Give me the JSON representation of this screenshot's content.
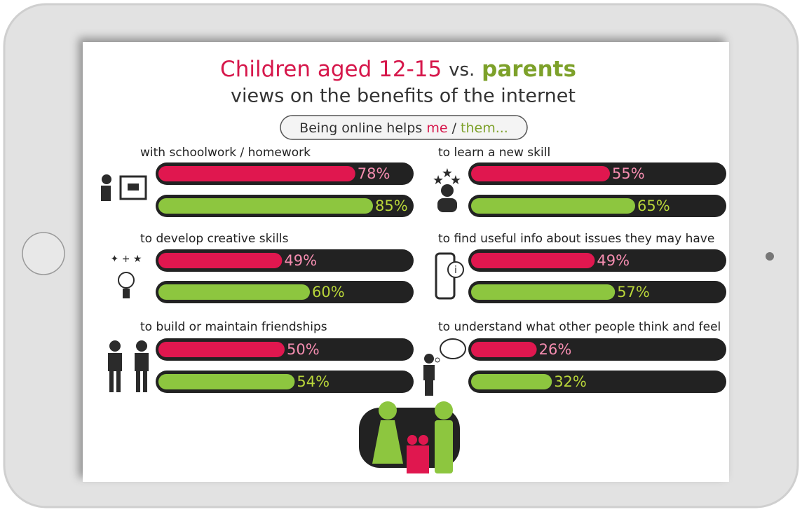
{
  "header": {
    "title_part1": "Children aged 12-15",
    "title_vs": "vs.",
    "title_part2": "parents",
    "title_line2": "views on the benefits of the internet"
  },
  "legend": {
    "prefix": "Being online helps",
    "me": "me",
    "separator": "/",
    "them": "them..."
  },
  "chart_data": [
    {
      "type": "bar",
      "title": "with schoolwork / homework",
      "xlim": [
        0,
        100
      ],
      "series": [
        {
          "color": "#e0174f",
          "values": [
            78
          ],
          "value_labels": [
            "78%"
          ]
        },
        {
          "color": "#8dc63f",
          "values": [
            85
          ],
          "value_labels": [
            "85%"
          ]
        }
      ]
    },
    {
      "type": "bar",
      "title": "to learn a new skill",
      "xlim": [
        0,
        100
      ],
      "series": [
        {
          "color": "#e0174f",
          "values": [
            55
          ],
          "value_labels": [
            "55%"
          ]
        },
        {
          "color": "#8dc63f",
          "values": [
            65
          ],
          "value_labels": [
            "65%"
          ]
        }
      ]
    },
    {
      "type": "bar",
      "title": "to develop creative skills",
      "xlim": [
        0,
        100
      ],
      "series": [
        {
          "color": "#e0174f",
          "values": [
            49
          ],
          "value_labels": [
            "49%"
          ]
        },
        {
          "color": "#8dc63f",
          "values": [
            60
          ],
          "value_labels": [
            "60%"
          ]
        }
      ]
    },
    {
      "type": "bar",
      "title": "to find useful info about issues they may have",
      "xlim": [
        0,
        100
      ],
      "series": [
        {
          "color": "#e0174f",
          "values": [
            49
          ],
          "value_labels": [
            "49%"
          ]
        },
        {
          "color": "#8dc63f",
          "values": [
            57
          ],
          "value_labels": [
            "57%"
          ]
        }
      ]
    },
    {
      "type": "bar",
      "title": "to build or maintain friendships",
      "xlim": [
        0,
        100
      ],
      "series": [
        {
          "color": "#e0174f",
          "values": [
            50
          ],
          "value_labels": [
            "50%"
          ]
        },
        {
          "color": "#8dc63f",
          "values": [
            54
          ],
          "value_labels": [
            "54%"
          ]
        }
      ]
    },
    {
      "type": "bar",
      "title": "to understand what other people think and feel",
      "xlim": [
        0,
        100
      ],
      "series": [
        {
          "color": "#e0174f",
          "values": [
            26
          ],
          "value_labels": [
            "26%"
          ]
        },
        {
          "color": "#8dc63f",
          "values": [
            32
          ],
          "value_labels": [
            "32%"
          ]
        }
      ]
    }
  ]
}
